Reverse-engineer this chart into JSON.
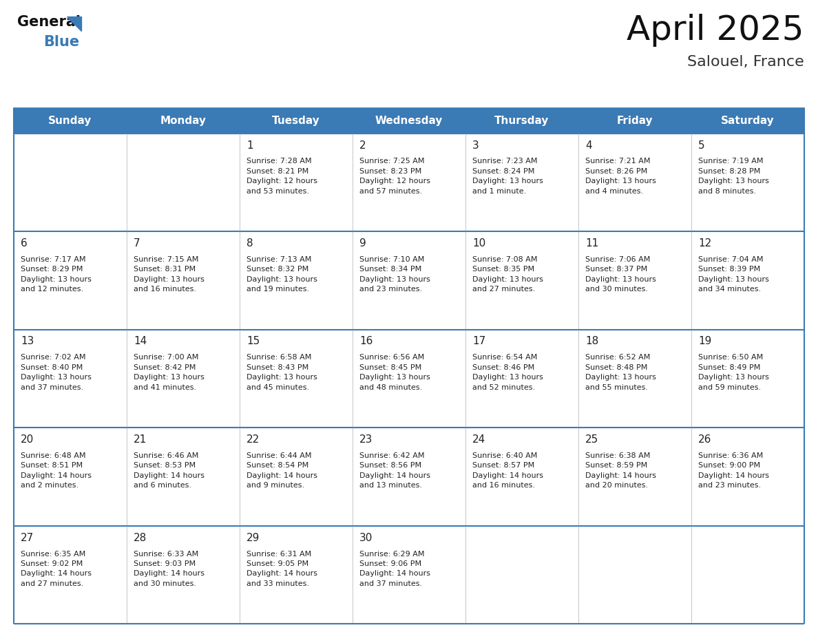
{
  "title": "April 2025",
  "subtitle": "Salouel, France",
  "header_color": "#3a7ab5",
  "header_text_color": "#ffffff",
  "cell_bg_color": "#ffffff",
  "border_color": "#3a7ab5",
  "text_color": "#222222",
  "days_of_week": [
    "Sunday",
    "Monday",
    "Tuesday",
    "Wednesday",
    "Thursday",
    "Friday",
    "Saturday"
  ],
  "logo_general_color": "#111111",
  "logo_blue_color": "#3a7ab5",
  "title_fontsize": 36,
  "subtitle_fontsize": 16,
  "day_header_fontsize": 11,
  "day_num_fontsize": 11,
  "info_fontsize": 8.0,
  "weeks": [
    [
      {
        "day": "",
        "info": ""
      },
      {
        "day": "",
        "info": ""
      },
      {
        "day": "1",
        "info": "Sunrise: 7:28 AM\nSunset: 8:21 PM\nDaylight: 12 hours\nand 53 minutes."
      },
      {
        "day": "2",
        "info": "Sunrise: 7:25 AM\nSunset: 8:23 PM\nDaylight: 12 hours\nand 57 minutes."
      },
      {
        "day": "3",
        "info": "Sunrise: 7:23 AM\nSunset: 8:24 PM\nDaylight: 13 hours\nand 1 minute."
      },
      {
        "day": "4",
        "info": "Sunrise: 7:21 AM\nSunset: 8:26 PM\nDaylight: 13 hours\nand 4 minutes."
      },
      {
        "day": "5",
        "info": "Sunrise: 7:19 AM\nSunset: 8:28 PM\nDaylight: 13 hours\nand 8 minutes."
      }
    ],
    [
      {
        "day": "6",
        "info": "Sunrise: 7:17 AM\nSunset: 8:29 PM\nDaylight: 13 hours\nand 12 minutes."
      },
      {
        "day": "7",
        "info": "Sunrise: 7:15 AM\nSunset: 8:31 PM\nDaylight: 13 hours\nand 16 minutes."
      },
      {
        "day": "8",
        "info": "Sunrise: 7:13 AM\nSunset: 8:32 PM\nDaylight: 13 hours\nand 19 minutes."
      },
      {
        "day": "9",
        "info": "Sunrise: 7:10 AM\nSunset: 8:34 PM\nDaylight: 13 hours\nand 23 minutes."
      },
      {
        "day": "10",
        "info": "Sunrise: 7:08 AM\nSunset: 8:35 PM\nDaylight: 13 hours\nand 27 minutes."
      },
      {
        "day": "11",
        "info": "Sunrise: 7:06 AM\nSunset: 8:37 PM\nDaylight: 13 hours\nand 30 minutes."
      },
      {
        "day": "12",
        "info": "Sunrise: 7:04 AM\nSunset: 8:39 PM\nDaylight: 13 hours\nand 34 minutes."
      }
    ],
    [
      {
        "day": "13",
        "info": "Sunrise: 7:02 AM\nSunset: 8:40 PM\nDaylight: 13 hours\nand 37 minutes."
      },
      {
        "day": "14",
        "info": "Sunrise: 7:00 AM\nSunset: 8:42 PM\nDaylight: 13 hours\nand 41 minutes."
      },
      {
        "day": "15",
        "info": "Sunrise: 6:58 AM\nSunset: 8:43 PM\nDaylight: 13 hours\nand 45 minutes."
      },
      {
        "day": "16",
        "info": "Sunrise: 6:56 AM\nSunset: 8:45 PM\nDaylight: 13 hours\nand 48 minutes."
      },
      {
        "day": "17",
        "info": "Sunrise: 6:54 AM\nSunset: 8:46 PM\nDaylight: 13 hours\nand 52 minutes."
      },
      {
        "day": "18",
        "info": "Sunrise: 6:52 AM\nSunset: 8:48 PM\nDaylight: 13 hours\nand 55 minutes."
      },
      {
        "day": "19",
        "info": "Sunrise: 6:50 AM\nSunset: 8:49 PM\nDaylight: 13 hours\nand 59 minutes."
      }
    ],
    [
      {
        "day": "20",
        "info": "Sunrise: 6:48 AM\nSunset: 8:51 PM\nDaylight: 14 hours\nand 2 minutes."
      },
      {
        "day": "21",
        "info": "Sunrise: 6:46 AM\nSunset: 8:53 PM\nDaylight: 14 hours\nand 6 minutes."
      },
      {
        "day": "22",
        "info": "Sunrise: 6:44 AM\nSunset: 8:54 PM\nDaylight: 14 hours\nand 9 minutes."
      },
      {
        "day": "23",
        "info": "Sunrise: 6:42 AM\nSunset: 8:56 PM\nDaylight: 14 hours\nand 13 minutes."
      },
      {
        "day": "24",
        "info": "Sunrise: 6:40 AM\nSunset: 8:57 PM\nDaylight: 14 hours\nand 16 minutes."
      },
      {
        "day": "25",
        "info": "Sunrise: 6:38 AM\nSunset: 8:59 PM\nDaylight: 14 hours\nand 20 minutes."
      },
      {
        "day": "26",
        "info": "Sunrise: 6:36 AM\nSunset: 9:00 PM\nDaylight: 14 hours\nand 23 minutes."
      }
    ],
    [
      {
        "day": "27",
        "info": "Sunrise: 6:35 AM\nSunset: 9:02 PM\nDaylight: 14 hours\nand 27 minutes."
      },
      {
        "day": "28",
        "info": "Sunrise: 6:33 AM\nSunset: 9:03 PM\nDaylight: 14 hours\nand 30 minutes."
      },
      {
        "day": "29",
        "info": "Sunrise: 6:31 AM\nSunset: 9:05 PM\nDaylight: 14 hours\nand 33 minutes."
      },
      {
        "day": "30",
        "info": "Sunrise: 6:29 AM\nSunset: 9:06 PM\nDaylight: 14 hours\nand 37 minutes."
      },
      {
        "day": "",
        "info": ""
      },
      {
        "day": "",
        "info": ""
      },
      {
        "day": "",
        "info": ""
      }
    ]
  ]
}
